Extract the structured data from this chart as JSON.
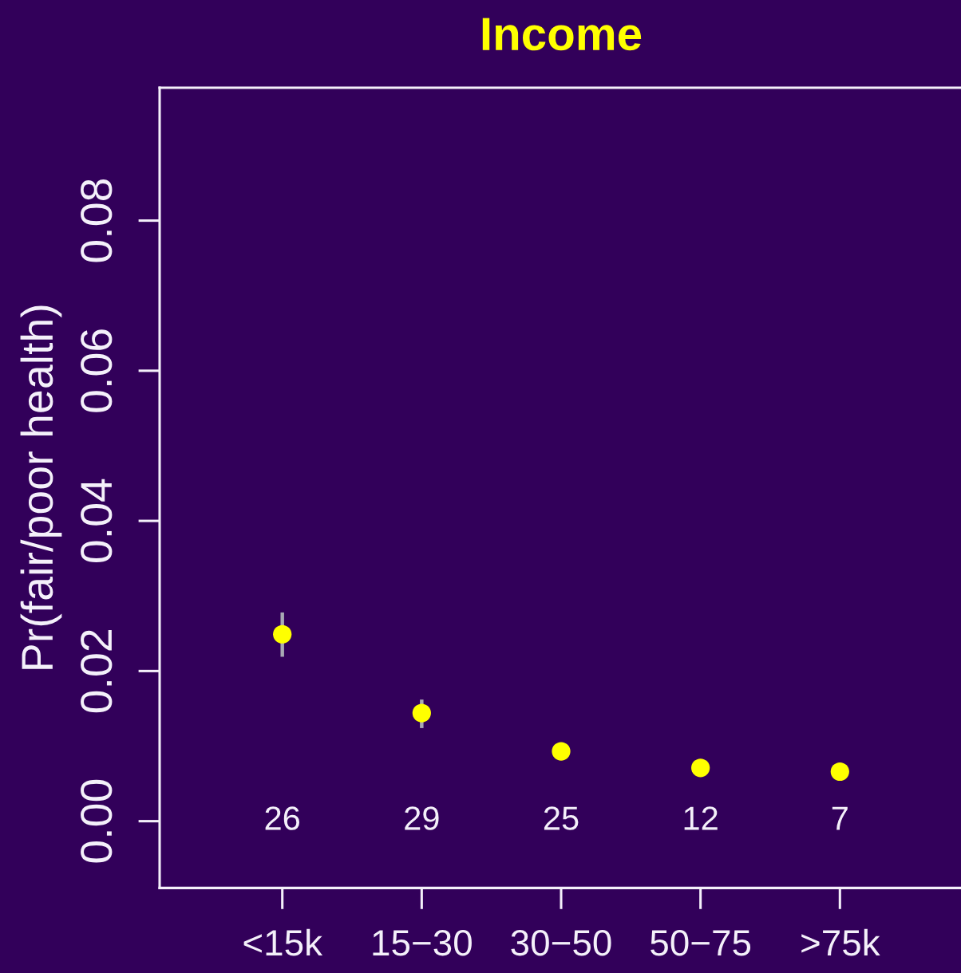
{
  "chart_data": {
    "type": "scatter",
    "title": "Income",
    "ylabel": "Pr(fair/poor health)",
    "categories": [
      "<15k",
      "15−30",
      "30−50",
      "50−75",
      ">75k"
    ],
    "values": [
      0.0249,
      0.0144,
      0.0093,
      0.0071,
      0.0066
    ],
    "color": "#ffff00",
    "errors": [
      [
        0.0219,
        0.0278
      ],
      [
        0.0124,
        0.0162
      ],
      null,
      null,
      null
    ],
    "ylim": [
      -0.0089,
      0.0977
    ],
    "yticks": [
      {
        "value": 0,
        "label": "0.00"
      },
      {
        "value": 0.02,
        "label": "0.02"
      },
      {
        "value": 0.04,
        "label": "0.04"
      },
      {
        "value": 0.06,
        "label": "0.06"
      },
      {
        "value": 0.08,
        "label": "0.08"
      }
    ],
    "annotations": [
      "26",
      "29",
      "25",
      "12",
      "7"
    ],
    "marker": "circle"
  }
}
